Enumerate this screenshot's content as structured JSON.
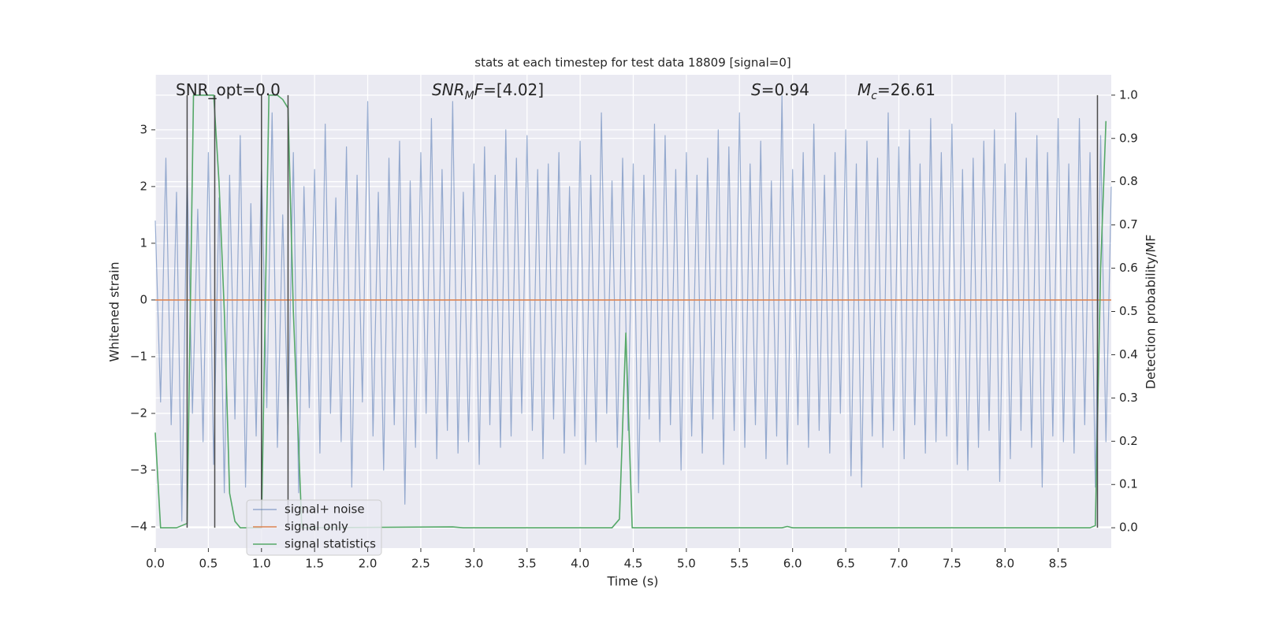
{
  "chart_data": {
    "type": "line",
    "title": "stats at each timestep for test data 18809 [signal=0]",
    "xlabel": "Time (s)",
    "ylabel": "Whitened strain",
    "y2label": "Detection probability/MF",
    "grid": true,
    "legend": "lower left",
    "xlim": [
      0,
      9.0
    ],
    "ylim": [
      -4.375,
      3.97
    ],
    "y2lim": [
      -0.047,
      1.047
    ],
    "xticks": [
      {
        "value": 0,
        "label": "0.0"
      },
      0.5,
      {
        "value": 1,
        "label": "1.0"
      },
      1.5,
      {
        "value": 2,
        "label": "2.0"
      },
      2.5,
      {
        "value": 3,
        "label": "3.0"
      },
      3.5,
      {
        "value": 4,
        "label": "4.0"
      },
      4.5,
      {
        "value": 5,
        "label": "5.0"
      },
      5.5,
      {
        "value": 6,
        "label": "6.0"
      },
      6.5,
      {
        "value": 7,
        "label": "7.0"
      },
      7.5,
      {
        "value": 8,
        "label": "8.0"
      },
      8.5
    ],
    "yticks": [
      {
        "value": -4,
        "label": "−4"
      },
      {
        "value": -3,
        "label": "−3"
      },
      {
        "value": -2,
        "label": "−2"
      },
      {
        "value": -1,
        "label": "−1"
      },
      0,
      1,
      2,
      3
    ],
    "y2ticks": [
      {
        "value": 0,
        "label": "0.0"
      },
      0.1,
      0.2,
      0.3,
      0.4,
      0.5,
      0.6,
      0.7,
      0.8,
      0.9,
      {
        "value": 1,
        "label": "1.0"
      }
    ],
    "annotations": [
      [
        "SNR_opt=0.0"
      ],
      [
        "SNR",
        "M",
        "F",
        "=[4.02]"
      ],
      [
        "S",
        "=0.94"
      ],
      [
        "M",
        "c",
        "=26.61"
      ]
    ],
    "vlines": {
      "x": [
        0.3,
        0.56,
        1.0,
        1.25,
        8.87
      ],
      "ymin": 0,
      "ymax": 1,
      "color": "#4a4a4a"
    },
    "series": [
      {
        "name": "signal+ noise",
        "color": "#4c72b0",
        "axis": "y",
        "x": [
          0,
          0.05,
          0.1,
          0.15,
          0.2,
          0.25,
          0.3,
          0.35,
          0.4,
          0.45,
          0.5,
          0.55,
          0.6,
          0.65,
          0.7,
          0.75,
          0.8,
          0.85,
          0.9,
          0.95,
          1,
          1.05,
          1.1,
          1.15,
          1.2,
          1.25,
          1.3,
          1.35,
          1.4,
          1.45,
          1.5,
          1.55,
          1.6,
          1.65,
          1.7,
          1.75,
          1.8,
          1.85,
          1.9,
          1.95,
          2,
          2.05,
          2.1,
          2.15,
          2.2,
          2.25,
          2.3,
          2.35,
          2.4,
          2.45,
          2.5,
          2.55,
          2.6,
          2.65,
          2.7,
          2.75,
          2.8,
          2.85,
          2.9,
          2.95,
          3,
          3.05,
          3.1,
          3.15,
          3.2,
          3.25,
          3.3,
          3.35,
          3.4,
          3.45,
          3.5,
          3.55,
          3.6,
          3.65,
          3.7,
          3.75,
          3.8,
          3.85,
          3.9,
          3.95,
          4,
          4.05,
          4.1,
          4.15,
          4.2,
          4.25,
          4.3,
          4.35,
          4.4,
          4.45,
          4.5,
          4.55,
          4.6,
          4.65,
          4.7,
          4.75,
          4.8,
          4.85,
          4.9,
          4.95,
          5,
          5.05,
          5.1,
          5.15,
          5.2,
          5.25,
          5.3,
          5.35,
          5.4,
          5.45,
          5.5,
          5.55,
          5.6,
          5.65,
          5.7,
          5.75,
          5.8,
          5.85,
          5.9,
          5.95,
          6,
          6.05,
          6.1,
          6.15,
          6.2,
          6.25,
          6.3,
          6.35,
          6.4,
          6.45,
          6.5,
          6.55,
          6.6,
          6.65,
          6.7,
          6.75,
          6.8,
          6.85,
          6.9,
          6.95,
          7,
          7.05,
          7.1,
          7.15,
          7.2,
          7.25,
          7.3,
          7.35,
          7.4,
          7.45,
          7.5,
          7.55,
          7.6,
          7.65,
          7.7,
          7.75,
          7.8,
          7.85,
          7.9,
          7.95,
          8,
          8.05,
          8.1,
          8.15,
          8.2,
          8.25,
          8.3,
          8.35,
          8.4,
          8.45,
          8.5,
          8.55,
          8.6,
          8.65,
          8.7,
          8.75,
          8.8,
          8.85,
          8.9,
          8.95,
          9
        ],
        "values": [
          1.4,
          -1.8,
          2.5,
          -2.2,
          1.9,
          -3.9,
          2.3,
          -2.0,
          1.6,
          -2.5,
          2.6,
          -2.9,
          1.8,
          -3.4,
          2.2,
          -2.1,
          2.9,
          -3.3,
          1.7,
          -2.4,
          2.4,
          -1.9,
          3.3,
          -2.6,
          1.5,
          -2.2,
          2.6,
          -3.4,
          2.0,
          -1.9,
          2.3,
          -2.7,
          3.1,
          -2.0,
          1.8,
          -2.5,
          2.7,
          -3.3,
          2.2,
          -1.8,
          3.5,
          -2.4,
          1.9,
          -3.0,
          2.5,
          -2.2,
          2.8,
          -3.6,
          2.1,
          -2.6,
          2.6,
          -2.0,
          3.2,
          -2.8,
          2.3,
          -2.3,
          3.5,
          -2.7,
          1.9,
          -2.5,
          2.4,
          -2.9,
          2.7,
          -2.2,
          2.2,
          -2.6,
          3.0,
          -2.4,
          2.5,
          -2.0,
          2.9,
          -2.3,
          2.3,
          -2.8,
          2.4,
          -2.1,
          2.6,
          -2.7,
          2.0,
          -2.4,
          2.8,
          -2.9,
          2.2,
          -2.5,
          3.3,
          -2.0,
          2.1,
          -2.6,
          2.5,
          -2.3,
          2.4,
          -3.4,
          2.2,
          -2.1,
          3.1,
          -2.5,
          2.9,
          -2.2,
          2.3,
          -3.0,
          2.6,
          -2.4,
          2.2,
          -2.7,
          2.5,
          -2.1,
          3.0,
          -2.9,
          2.7,
          -2.3,
          3.3,
          -2.6,
          2.4,
          -2.2,
          2.8,
          -2.8,
          2.1,
          -2.4,
          3.6,
          -2.9,
          2.3,
          -2.2,
          2.6,
          -2.6,
          3.1,
          -2.3,
          2.2,
          -2.7,
          2.6,
          -2.0,
          3.0,
          -3.1,
          2.4,
          -3.3,
          2.8,
          -2.4,
          2.5,
          -2.6,
          3.3,
          -2.3,
          2.7,
          -2.8,
          3.0,
          -2.2,
          2.4,
          -2.7,
          3.2,
          -2.5,
          2.6,
          -2.4,
          3.1,
          -2.9,
          2.3,
          -3.0,
          2.5,
          -2.6,
          2.8,
          -2.3,
          3.0,
          -3.2,
          2.4,
          -2.8,
          3.3,
          -2.3,
          2.5,
          -2.6,
          2.9,
          -3.3,
          2.6,
          -2.4,
          3.2,
          -2.5,
          2.4,
          -2.7,
          3.2,
          -2.2,
          2.6,
          -3.3,
          2.9,
          -2.5,
          2.0
        ]
      },
      {
        "name": "signal only",
        "color": "#dd8452",
        "axis": "y",
        "x": [
          0,
          9
        ],
        "values": [
          0,
          0
        ]
      },
      {
        "name": "signal statistics",
        "color": "#55a868",
        "axis": "y2",
        "x": [
          0,
          0.05,
          0.2,
          0.3,
          0.36,
          0.55,
          0.6,
          0.65,
          0.7,
          0.75,
          0.8,
          1.0,
          1.07,
          1.15,
          1.2,
          1.25,
          1.3,
          1.38,
          2.8,
          2.9,
          4.3,
          4.37,
          4.43,
          4.49,
          5.9,
          5.95,
          6.0,
          8.8,
          8.85,
          8.9,
          8.95
        ],
        "values": [
          0.22,
          0,
          0,
          0.01,
          1.0,
          1.0,
          0.8,
          0.5,
          0.08,
          0.015,
          0,
          0,
          1.0,
          1.0,
          0.99,
          0.97,
          0.5,
          0,
          0.002,
          0,
          0,
          0.02,
          0.45,
          0,
          0,
          0.003,
          0,
          0,
          0.005,
          0.6,
          0.94
        ]
      }
    ]
  }
}
